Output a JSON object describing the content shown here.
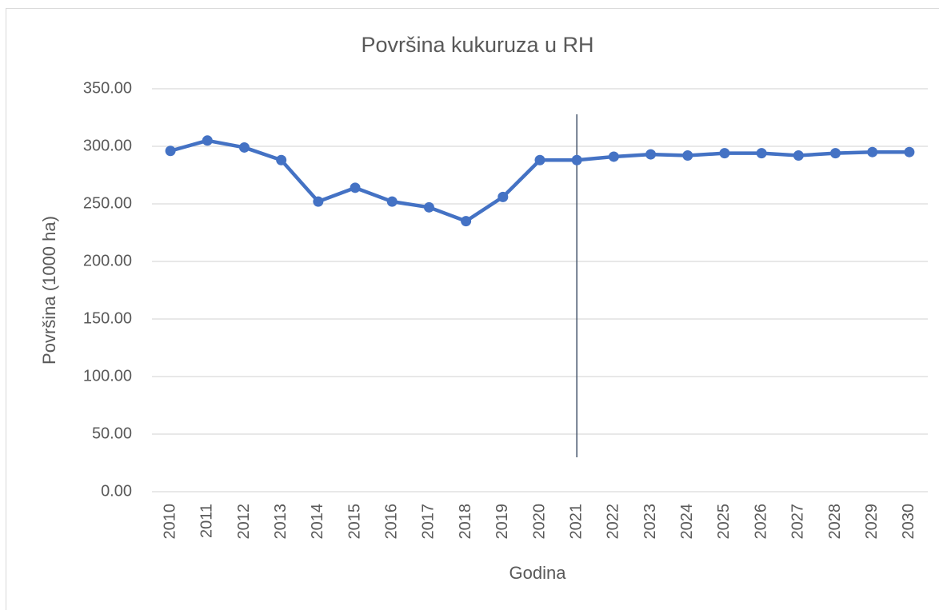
{
  "chart_data": {
    "type": "line",
    "title": "Površina kukuruza u RH",
    "x_label": "Godina",
    "y_label": "Površina (1000 ha)",
    "categories": [
      "2010",
      "2011",
      "2012",
      "2013",
      "2014",
      "2015",
      "2016",
      "2017",
      "2018",
      "2019",
      "2020",
      "2021",
      "2022",
      "2023",
      "2024",
      "2025",
      "2026",
      "2027",
      "2028",
      "2029",
      "2030"
    ],
    "series": [
      {
        "name": "Površina",
        "color": "#4472c4",
        "values": [
          296,
          305,
          299,
          288,
          252,
          264,
          252,
          247,
          235,
          256,
          288,
          288,
          291,
          293,
          292,
          294,
          294,
          292,
          294,
          295,
          295
        ]
      }
    ],
    "ylim": [
      0,
      350
    ],
    "yticks": [
      {
        "value": 0,
        "label": "0.00"
      },
      {
        "value": 50,
        "label": "50.00"
      },
      {
        "value": 100,
        "label": "100.00"
      },
      {
        "value": 150,
        "label": "150.00"
      },
      {
        "value": 200,
        "label": "200.00"
      },
      {
        "value": 250,
        "label": "250.00"
      },
      {
        "value": 300,
        "label": "300.00"
      },
      {
        "value": 350,
        "label": "350.00"
      }
    ],
    "grid": true,
    "vline": {
      "category": "2021",
      "color": "#44546a"
    }
  }
}
